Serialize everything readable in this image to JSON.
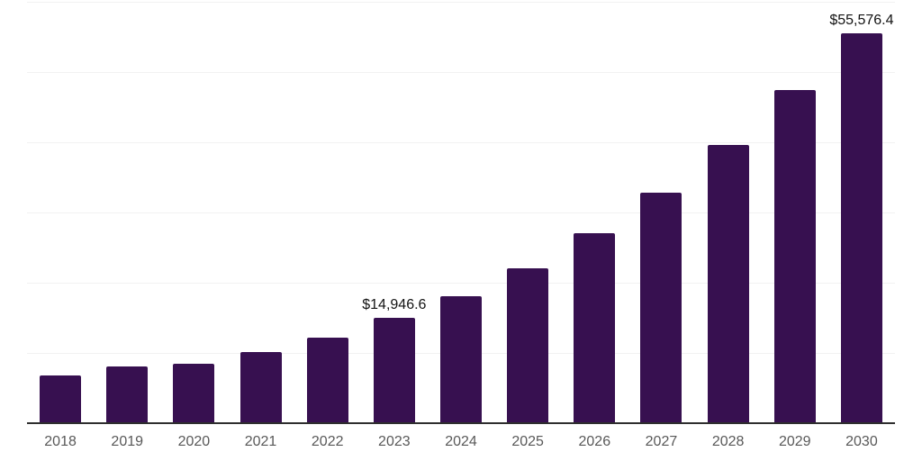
{
  "chart_data": {
    "type": "bar",
    "title": "",
    "xlabel": "",
    "ylabel": "",
    "categories": [
      "2018",
      "2019",
      "2020",
      "2021",
      "2022",
      "2023",
      "2024",
      "2025",
      "2026",
      "2027",
      "2028",
      "2029",
      "2030"
    ],
    "values": [
      6770,
      8050,
      8500,
      10090,
      12140,
      14946.6,
      18140,
      22100,
      27080,
      32830,
      39600,
      47400,
      55576.4
    ],
    "annotations": [
      {
        "category": "2023",
        "text": "$14,946.6"
      },
      {
        "category": "2030",
        "text": "$55,576.4"
      }
    ],
    "ylim": [
      0,
      60000
    ],
    "grid_interval": 10000,
    "grid": true,
    "legend": false,
    "y_axis_labels_visible": false,
    "colors": {
      "bar": "#371050",
      "grid_line": "#F2F2F2",
      "axis_line": "#2E2E2E",
      "tick_label": "#595959",
      "annotation_text": "#121212",
      "background": "#FFFFFF"
    }
  }
}
